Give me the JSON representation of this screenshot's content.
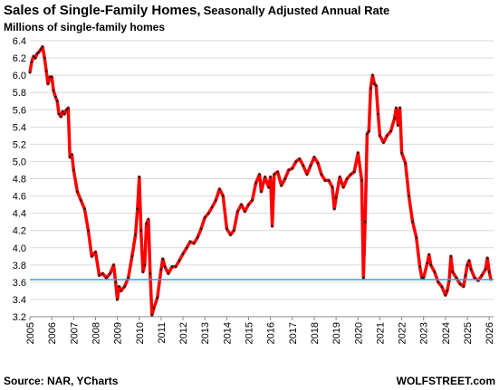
{
  "chart_data": {
    "type": "line",
    "title": "Sales of Single-Family Homes,",
    "title_suffix": "Seasonally Adjusted Annual Rate",
    "subtitle": "Millions of single-family homes",
    "source": "Source: NAR, YCharts",
    "credit": "WOLFSTREET.com",
    "color": "#ff0000",
    "grid": true,
    "reference_line": 3.63,
    "reference_color": "#2aa6d8",
    "x": [
      2005.0,
      2005.08,
      2005.17,
      2005.25,
      2005.33,
      2005.42,
      2005.5,
      2005.58,
      2005.67,
      2005.75,
      2005.83,
      2005.92,
      2006.0,
      2006.08,
      2006.17,
      2006.25,
      2006.33,
      2006.42,
      2006.5,
      2006.58,
      2006.67,
      2006.75,
      2006.83,
      2006.92,
      2007.0,
      2007.17,
      2007.33,
      2007.5,
      2007.67,
      2007.83,
      2008.0,
      2008.17,
      2008.33,
      2008.5,
      2008.67,
      2008.83,
      2008.92,
      2009.0,
      2009.08,
      2009.17,
      2009.33,
      2009.5,
      2009.67,
      2009.83,
      2009.92,
      2010.0,
      2010.08,
      2010.17,
      2010.25,
      2010.33,
      2010.42,
      2010.5,
      2010.58,
      2010.67,
      2010.83,
      2011.0,
      2011.08,
      2011.17,
      2011.33,
      2011.5,
      2011.67,
      2011.83,
      2012.0,
      2012.17,
      2012.33,
      2012.5,
      2012.67,
      2012.83,
      2013.0,
      2013.17,
      2013.33,
      2013.5,
      2013.67,
      2013.83,
      2014.0,
      2014.17,
      2014.33,
      2014.5,
      2014.67,
      2014.83,
      2015.0,
      2015.17,
      2015.33,
      2015.5,
      2015.58,
      2015.75,
      2015.92,
      2016.0,
      2016.08,
      2016.17,
      2016.33,
      2016.5,
      2016.67,
      2016.83,
      2017.0,
      2017.17,
      2017.33,
      2017.5,
      2017.67,
      2017.83,
      2018.0,
      2018.17,
      2018.33,
      2018.5,
      2018.67,
      2018.83,
      2018.92,
      2019.0,
      2019.17,
      2019.33,
      2019.5,
      2019.67,
      2019.83,
      2020.0,
      2020.17,
      2020.25,
      2020.33,
      2020.42,
      2020.5,
      2020.58,
      2020.67,
      2020.75,
      2020.83,
      2020.92,
      2021.0,
      2021.17,
      2021.33,
      2021.5,
      2021.67,
      2021.75,
      2021.83,
      2021.92,
      2022.0,
      2022.17,
      2022.33,
      2022.5,
      2022.67,
      2022.83,
      2022.92,
      2023.0,
      2023.17,
      2023.25,
      2023.33,
      2023.5,
      2023.67,
      2023.83,
      2024.0,
      2024.08,
      2024.17,
      2024.25,
      2024.33,
      2024.5,
      2024.67,
      2024.83,
      2024.92,
      2025.0,
      2025.08,
      2025.17,
      2025.33,
      2025.5,
      2025.67,
      2025.83,
      2025.92,
      2026.0,
      2026.08
    ],
    "values": [
      6.03,
      6.15,
      6.22,
      6.2,
      6.25,
      6.27,
      6.3,
      6.33,
      6.2,
      6.05,
      5.9,
      5.98,
      5.98,
      5.82,
      5.75,
      5.7,
      5.55,
      5.52,
      5.58,
      5.55,
      5.6,
      5.62,
      5.05,
      5.08,
      4.9,
      4.65,
      4.55,
      4.45,
      4.2,
      3.9,
      3.95,
      3.68,
      3.7,
      3.65,
      3.7,
      3.8,
      3.6,
      3.4,
      3.55,
      3.5,
      3.55,
      3.65,
      3.9,
      4.15,
      4.45,
      4.82,
      4.2,
      3.72,
      3.8,
      4.28,
      4.33,
      3.7,
      3.22,
      3.3,
      3.42,
      3.75,
      3.87,
      3.78,
      3.7,
      3.78,
      3.78,
      3.85,
      3.93,
      4.0,
      4.07,
      4.05,
      4.12,
      4.22,
      4.35,
      4.4,
      4.47,
      4.55,
      4.68,
      4.6,
      4.22,
      4.15,
      4.2,
      4.42,
      4.5,
      4.42,
      4.5,
      4.55,
      4.75,
      4.85,
      4.65,
      4.82,
      4.7,
      4.82,
      4.25,
      4.85,
      4.88,
      4.72,
      4.8,
      4.9,
      4.92,
      5.0,
      5.03,
      4.95,
      4.85,
      4.95,
      5.05,
      4.98,
      4.85,
      4.78,
      4.78,
      4.7,
      4.45,
      4.58,
      4.82,
      4.7,
      4.8,
      4.85,
      4.88,
      5.1,
      4.78,
      3.65,
      4.3,
      5.32,
      5.35,
      5.85,
      6.0,
      5.9,
      5.88,
      5.55,
      5.3,
      5.22,
      5.3,
      5.35,
      5.5,
      5.62,
      5.42,
      5.62,
      5.1,
      4.98,
      4.6,
      4.3,
      4.12,
      3.78,
      3.65,
      3.65,
      3.82,
      3.92,
      3.8,
      3.72,
      3.6,
      3.55,
      3.45,
      3.5,
      3.62,
      3.9,
      3.72,
      3.65,
      3.58,
      3.55,
      3.68,
      3.8,
      3.85,
      3.75,
      3.65,
      3.62,
      3.68,
      3.75,
      3.88,
      3.72,
      3.63
    ],
    "xlim": [
      2005,
      2026.2
    ],
    "xticks": [
      2005,
      2006,
      2007,
      2008,
      2009,
      2010,
      2011,
      2012,
      2013,
      2014,
      2015,
      2016,
      2017,
      2018,
      2019,
      2020,
      2021,
      2022,
      2023,
      2024,
      2025,
      2026
    ],
    "ylim": [
      3.2,
      6.4
    ],
    "yticks": [
      {
        "value": 3.2,
        "label": "3.2"
      },
      {
        "value": 3.4,
        "label": "3.4"
      },
      {
        "value": 3.6,
        "label": "3.6"
      },
      {
        "value": 3.8,
        "label": "3.8"
      },
      {
        "value": 4.0,
        "label": "4.0"
      },
      {
        "value": 4.2,
        "label": "4.2"
      },
      {
        "value": 4.4,
        "label": "4.4"
      },
      {
        "value": 4.6,
        "label": "4.6"
      },
      {
        "value": 4.8,
        "label": "4.8"
      },
      {
        "value": 5.0,
        "label": "5.0"
      },
      {
        "value": 5.2,
        "label": "5.2"
      },
      {
        "value": 5.4,
        "label": "5.4"
      },
      {
        "value": 5.6,
        "label": "5.6"
      },
      {
        "value": 5.8,
        "label": "5.8"
      },
      {
        "value": 6.0,
        "label": "6.0"
      },
      {
        "value": 6.2,
        "label": "6.2"
      },
      {
        "value": 6.4,
        "label": "6.4"
      }
    ]
  }
}
